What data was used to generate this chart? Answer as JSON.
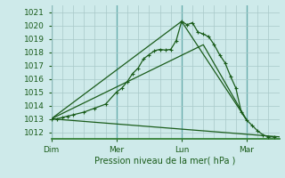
{
  "background_color": "#ceeaea",
  "grid_color": "#a8c8c8",
  "line_color": "#1a5c1a",
  "xlabel": "Pression niveau de la mer( hPa )",
  "ylim": [
    1011.5,
    1021.5
  ],
  "yticks": [
    1012,
    1013,
    1014,
    1015,
    1016,
    1017,
    1018,
    1019,
    1020,
    1021
  ],
  "xtick_labels": [
    "Dim",
    "Mer",
    "Lun",
    "Mar"
  ],
  "xtick_positions": [
    0,
    12,
    24,
    36
  ],
  "xlim": [
    0,
    42
  ],
  "series1_x": [
    0,
    1,
    2,
    3,
    4,
    6,
    8,
    10,
    12,
    13,
    14,
    15,
    16,
    17,
    18,
    19,
    20,
    21,
    22,
    23,
    24,
    25,
    26,
    27,
    28,
    29,
    30,
    31,
    32,
    33,
    34,
    35,
    36,
    37,
    38,
    39,
    40,
    41
  ],
  "series1_y": [
    1013.0,
    1013.0,
    1013.1,
    1013.2,
    1013.3,
    1013.5,
    1013.8,
    1014.1,
    1015.0,
    1015.3,
    1015.8,
    1016.4,
    1016.8,
    1017.5,
    1017.8,
    1018.1,
    1018.2,
    1018.15,
    1018.2,
    1018.85,
    1020.3,
    1020.05,
    1020.2,
    1019.5,
    1019.35,
    1019.15,
    1018.55,
    1017.8,
    1017.2,
    1016.2,
    1015.3,
    1013.5,
    1012.9,
    1012.5,
    1012.1,
    1011.8,
    1011.65,
    1011.65
  ],
  "series2_x": [
    0,
    24,
    36
  ],
  "series2_y": [
    1013.0,
    1020.3,
    1012.9
  ],
  "series3_x": [
    0,
    28,
    36
  ],
  "series3_y": [
    1013.0,
    1018.55,
    1012.9
  ],
  "series4_x": [
    0,
    42
  ],
  "series4_y": [
    1013.0,
    1011.65
  ]
}
